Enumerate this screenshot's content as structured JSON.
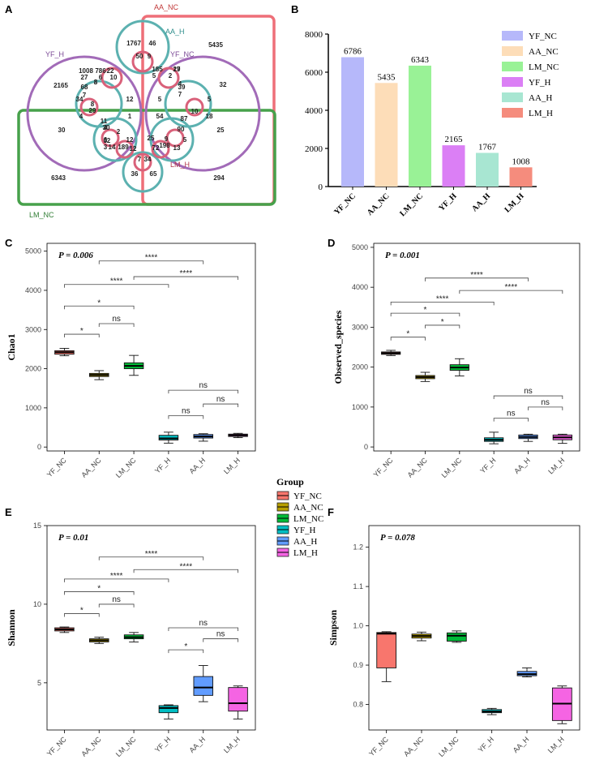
{
  "panel_labels": {
    "A": "A",
    "B": "B",
    "C": "C",
    "D": "D",
    "E": "E",
    "F": "F"
  },
  "colors": {
    "YF_NC": "#F8766D",
    "AA_NC": "#B79F00",
    "LM_NC": "#00BA38",
    "YF_H": "#00BFC4",
    "AA_H": "#619CFF",
    "LM_H": "#F564E3",
    "bar_YF_NC": "#B6B8FA",
    "bar_AA_NC": "#FDDDB8",
    "bar_LM_NC": "#99F296",
    "bar_YF_H": "#DB7FF5",
    "bar_AA_H": "#A8E6D2",
    "bar_LM_H": "#F58C7D",
    "venn_AA_NC": "#EE6F78",
    "venn_YF_H": "#A26BB8",
    "venn_AA_H": "#5CB1B0",
    "venn_LM_NC": "#47A14B",
    "venn_LM_H": "#D9617A",
    "venn_YF_NC": "#A26BB8"
  },
  "chart_data": [
    {
      "type": "venn",
      "panel": "A",
      "sets": [
        "AA_NC",
        "AA_H",
        "YF_H",
        "YF_NC",
        "LM_NC",
        "LM_H"
      ],
      "region_values": [
        "1767",
        "46",
        "5435",
        "50",
        "9",
        "2165",
        "1008",
        "786",
        "22",
        "8",
        "27",
        "6",
        "10",
        "5",
        "29",
        "185",
        "17",
        "2",
        "68",
        "8",
        "32",
        "34",
        "7",
        "12",
        "5",
        "4",
        "39",
        "7",
        "5",
        "8",
        "29",
        "4",
        "1",
        "10",
        "18",
        "11",
        "54",
        "87",
        "4",
        "30",
        "2",
        "6",
        "12",
        "90",
        "25",
        "30",
        "3",
        "2",
        "25",
        "9",
        "198",
        "5",
        "3",
        "14",
        "189",
        "12",
        "72",
        "13",
        "7",
        "34",
        "6343",
        "36",
        "65",
        "294"
      ]
    },
    {
      "type": "bar",
      "panel": "B",
      "categories": [
        "YF_NC",
        "AA_NC",
        "LM_NC",
        "YF_H",
        "AA_H",
        "LM_H"
      ],
      "values": [
        6786,
        5435,
        6343,
        2165,
        1767,
        1008
      ],
      "data_labels": [
        "6786",
        "5435",
        "6343",
        "2165",
        "1767",
        "1008"
      ],
      "yticks": [
        "0",
        "2000",
        "4000",
        "6000",
        "8000"
      ],
      "ylim": [
        0,
        8000
      ],
      "legend": [
        "YF_NC",
        "AA_NC",
        "LM_NC",
        "YF_H",
        "AA_H",
        "LM_H"
      ],
      "legend_position": "top-right"
    },
    {
      "type": "box",
      "panel": "C",
      "ylabel": "Chao1",
      "pvalue": "P = 0.006",
      "ylim": [
        -100,
        5200
      ],
      "yticks": [
        "0",
        "1000",
        "2000",
        "3000",
        "4000",
        "5000"
      ],
      "categories": [
        "YF_NC",
        "AA_NC",
        "LM_NC",
        "YF_H",
        "AA_H",
        "LM_H"
      ],
      "boxes": [
        {
          "min": 2330,
          "q1": 2370,
          "median": 2420,
          "q3": 2460,
          "max": 2520
        },
        {
          "min": 1720,
          "q1": 1800,
          "median": 1840,
          "q3": 1880,
          "max": 1950
        },
        {
          "min": 1830,
          "q1": 2000,
          "median": 2070,
          "q3": 2150,
          "max": 2340
        },
        {
          "min": 100,
          "q1": 180,
          "median": 220,
          "q3": 300,
          "max": 380
        },
        {
          "min": 150,
          "q1": 230,
          "median": 270,
          "q3": 320,
          "max": 340
        },
        {
          "min": 240,
          "q1": 270,
          "median": 300,
          "q3": 330,
          "max": 350
        }
      ],
      "brackets": [
        {
          "from": 1,
          "to": 4,
          "y": 4750,
          "label": "****"
        },
        {
          "from": 2,
          "to": 5,
          "y": 4350,
          "label": "****"
        },
        {
          "from": 0,
          "to": 3,
          "y": 4150,
          "label": "****"
        },
        {
          "from": 0,
          "to": 2,
          "y": 3600,
          "label": "*"
        },
        {
          "from": 1,
          "to": 2,
          "y": 3150,
          "label": "ns"
        },
        {
          "from": 0,
          "to": 1,
          "y": 2880,
          "label": "*"
        },
        {
          "from": 3,
          "to": 5,
          "y": 1450,
          "label": "ns"
        },
        {
          "from": 4,
          "to": 5,
          "y": 1100,
          "label": "ns"
        },
        {
          "from": 3,
          "to": 4,
          "y": 800,
          "label": "ns"
        }
      ]
    },
    {
      "type": "box",
      "panel": "D",
      "ylabel": "Observed_species",
      "pvalue": "P = 0.001",
      "ylim": [
        -100,
        5100
      ],
      "yticks": [
        "0",
        "1000",
        "2000",
        "3000",
        "4000",
        "5000"
      ],
      "categories": [
        "YF_NC",
        "AA_NC",
        "LM_NC",
        "YF_H",
        "AA_H",
        "LM_H"
      ],
      "boxes": [
        {
          "min": 2290,
          "q1": 2320,
          "median": 2350,
          "q3": 2380,
          "max": 2420
        },
        {
          "min": 1640,
          "q1": 1710,
          "median": 1750,
          "q3": 1790,
          "max": 1870
        },
        {
          "min": 1780,
          "q1": 1920,
          "median": 1990,
          "q3": 2060,
          "max": 2210
        },
        {
          "min": 80,
          "q1": 140,
          "median": 180,
          "q3": 230,
          "max": 370
        },
        {
          "min": 140,
          "q1": 210,
          "median": 250,
          "q3": 300,
          "max": 320
        },
        {
          "min": 90,
          "q1": 180,
          "median": 240,
          "q3": 300,
          "max": 320
        }
      ],
      "brackets": [
        {
          "from": 1,
          "to": 4,
          "y": 4230,
          "label": "****"
        },
        {
          "from": 2,
          "to": 5,
          "y": 3920,
          "label": "****"
        },
        {
          "from": 0,
          "to": 3,
          "y": 3630,
          "label": "****"
        },
        {
          "from": 0,
          "to": 2,
          "y": 3350,
          "label": "*"
        },
        {
          "from": 1,
          "to": 2,
          "y": 3050,
          "label": "*"
        },
        {
          "from": 0,
          "to": 1,
          "y": 2750,
          "label": "*"
        },
        {
          "from": 3,
          "to": 5,
          "y": 1280,
          "label": "ns"
        },
        {
          "from": 4,
          "to": 5,
          "y": 1000,
          "label": "ns"
        },
        {
          "from": 3,
          "to": 4,
          "y": 720,
          "label": "ns"
        }
      ]
    },
    {
      "type": "box",
      "panel": "E",
      "ylabel": "Shannon",
      "pvalue": "P = 0.01",
      "ylim": [
        2.0,
        15.0
      ],
      "yticks": [
        "5",
        "10",
        "15"
      ],
      "ytick_values": [
        5,
        10,
        15
      ],
      "categories": [
        "YF_NC",
        "AA_NC",
        "LM_NC",
        "YF_H",
        "AA_H",
        "LM_H"
      ],
      "boxes": [
        {
          "min": 8.2,
          "q1": 8.3,
          "median": 8.4,
          "q3": 8.5,
          "max": 8.55
        },
        {
          "min": 7.5,
          "q1": 7.6,
          "median": 7.7,
          "q3": 7.8,
          "max": 7.9
        },
        {
          "min": 7.6,
          "q1": 7.8,
          "median": 7.9,
          "q3": 8.05,
          "max": 8.2
        },
        {
          "min": 2.7,
          "q1": 3.1,
          "median": 3.4,
          "q3": 3.55,
          "max": 3.6
        },
        {
          "min": 3.8,
          "q1": 4.2,
          "median": 4.7,
          "q3": 5.4,
          "max": 6.1
        },
        {
          "min": 2.7,
          "q1": 3.2,
          "median": 3.7,
          "q3": 4.7,
          "max": 4.8
        }
      ],
      "brackets": [
        {
          "from": 1,
          "to": 4,
          "y": 13.0,
          "label": "****"
        },
        {
          "from": 2,
          "to": 5,
          "y": 12.2,
          "label": "****"
        },
        {
          "from": 0,
          "to": 3,
          "y": 11.6,
          "label": "****"
        },
        {
          "from": 0,
          "to": 2,
          "y": 10.8,
          "label": "*"
        },
        {
          "from": 1,
          "to": 2,
          "y": 10.0,
          "label": "ns"
        },
        {
          "from": 0,
          "to": 1,
          "y": 9.4,
          "label": "*"
        },
        {
          "from": 3,
          "to": 5,
          "y": 8.5,
          "label": "ns"
        },
        {
          "from": 4,
          "to": 5,
          "y": 7.8,
          "label": "ns"
        },
        {
          "from": 3,
          "to": 4,
          "y": 7.1,
          "label": "*"
        }
      ]
    },
    {
      "type": "box",
      "panel": "F",
      "ylabel": "Simpson",
      "pvalue": "P = 0.078",
      "ylim": [
        0.735,
        1.255
      ],
      "yticks": [
        "0.8",
        "0.9",
        "1.0",
        "1.1",
        "1.2"
      ],
      "ytick_values": [
        0.8,
        0.9,
        1.0,
        1.1,
        1.2
      ],
      "categories": [
        "YF_NC",
        "AA_NC",
        "LM_NC",
        "YF_H",
        "AA_H",
        "LM_H"
      ],
      "boxes": [
        {
          "min": 0.858,
          "q1": 0.893,
          "median": 0.98,
          "q3": 0.983,
          "max": 0.985
        },
        {
          "min": 0.962,
          "q1": 0.969,
          "median": 0.974,
          "q3": 0.979,
          "max": 0.984
        },
        {
          "min": 0.958,
          "q1": 0.961,
          "median": 0.975,
          "q3": 0.982,
          "max": 0.987
        },
        {
          "min": 0.774,
          "q1": 0.779,
          "median": 0.782,
          "q3": 0.787,
          "max": 0.79
        },
        {
          "min": 0.87,
          "q1": 0.873,
          "median": 0.877,
          "q3": 0.884,
          "max": 0.893
        },
        {
          "min": 0.751,
          "q1": 0.759,
          "median": 0.802,
          "q3": 0.842,
          "max": 0.847
        }
      ],
      "brackets": []
    }
  ],
  "legend": {
    "title": "Group",
    "items": [
      "YF_NC",
      "AA_NC",
      "LM_NC",
      "YF_H",
      "AA_H",
      "LM_H"
    ]
  }
}
